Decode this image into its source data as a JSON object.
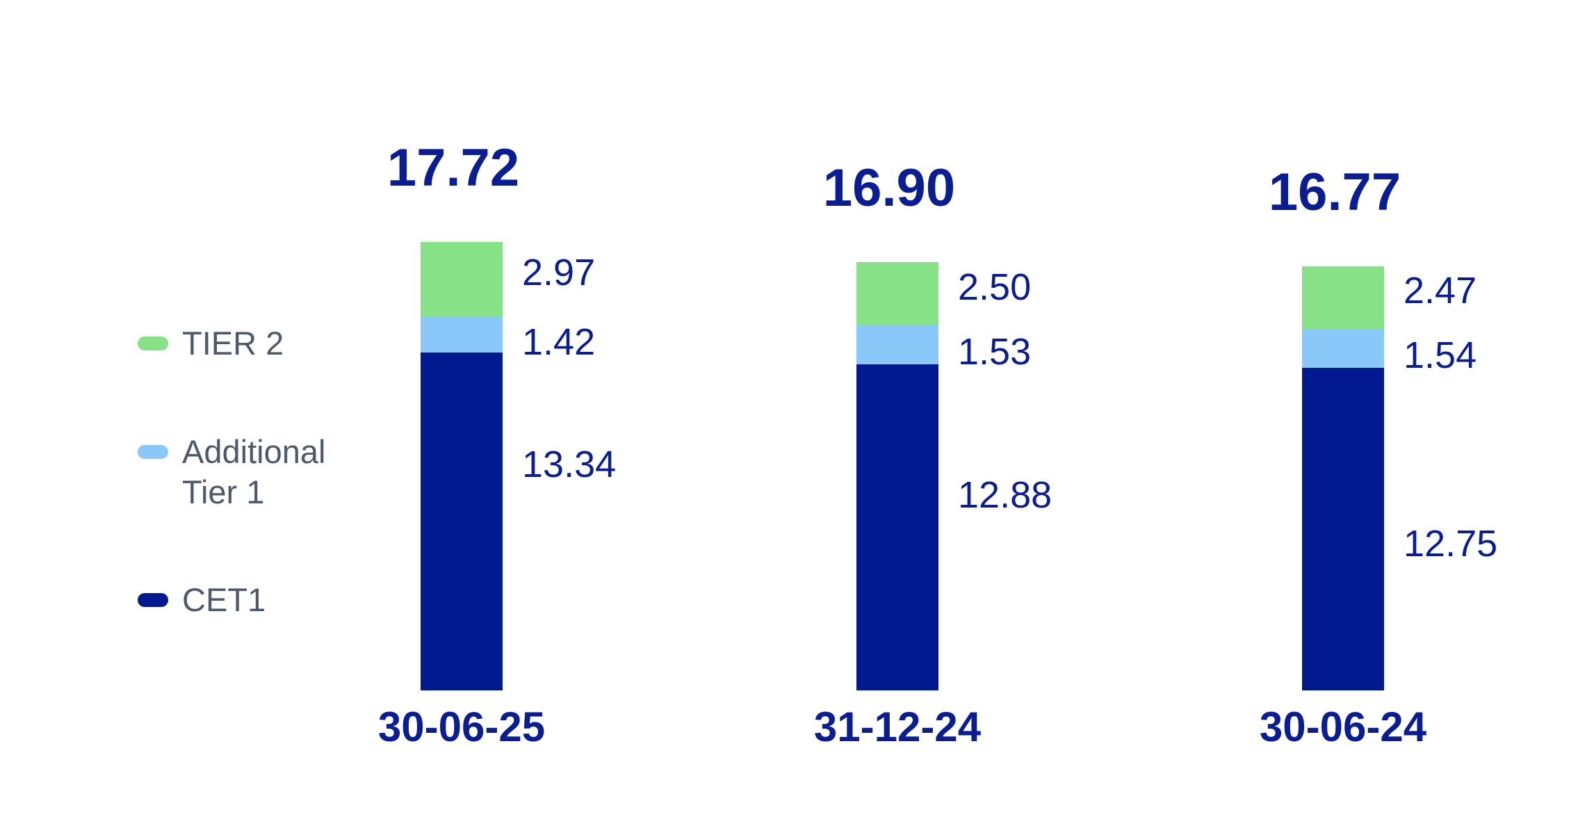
{
  "chart_data": {
    "type": "bar",
    "stacked": true,
    "title": "",
    "xlabel": "",
    "ylabel": "",
    "grid": false,
    "axes_visible": false,
    "legend_position": "left",
    "background": "#FFFFFF",
    "categories": [
      "30-06-25",
      "31-12-24",
      "30-06-24"
    ],
    "series": [
      {
        "name": "CET1",
        "color": "#021A8F",
        "values": [
          13.34,
          12.88,
          12.75
        ],
        "value_labels": [
          "13.34",
          "12.88",
          "12.75"
        ]
      },
      {
        "name": "Additional Tier 1",
        "color": "#8BC8FA",
        "values": [
          1.42,
          1.53,
          1.54
        ],
        "value_labels": [
          "1.42",
          "1.53",
          "1.54"
        ]
      },
      {
        "name": "TIER 2",
        "color": "#87E287",
        "values": [
          2.97,
          2.5,
          2.47
        ],
        "value_labels": [
          "2.97",
          "2.50",
          "2.47"
        ]
      }
    ],
    "totals": [
      17.72,
      16.9,
      16.77
    ],
    "totals_labels": [
      "17.72",
      "16.90",
      "16.77"
    ]
  },
  "legend": {
    "text_color": "#4E5A6B",
    "items": [
      {
        "label": "TIER 2",
        "color": "#87E287"
      },
      {
        "label": "Additional Tier 1",
        "color": "#8BC8FA"
      },
      {
        "label": "CET1",
        "color": "#021A8F"
      }
    ]
  },
  "colors": {
    "cet1": "#021A8F",
    "additional_tier_1": "#8BC8FA",
    "tier_2": "#87E287",
    "number_text": "#0A1D92",
    "legend_text": "#4E5A6B",
    "background": "#FFFFFF"
  }
}
